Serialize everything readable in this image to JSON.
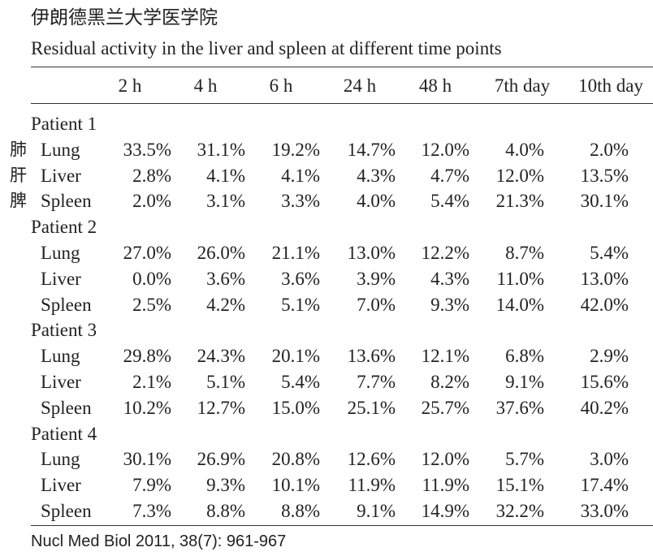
{
  "header": {
    "title": "伊朗德黑兰大学医学院",
    "subtitle": "Residual activity in the liver and spleen at different time points"
  },
  "table": {
    "columns": [
      "2 h",
      "4 h",
      "6 h",
      "24 h",
      "48 h",
      "7th day",
      "10th day"
    ],
    "groups": [
      {
        "label": "Patient 1",
        "rows": [
          {
            "note": "肺",
            "label": "Lung",
            "values": [
              "33.5%",
              "31.1%",
              "19.2%",
              "14.7%",
              "12.0%",
              "4.0%",
              "2.0%"
            ]
          },
          {
            "note": "肝",
            "label": "Liver",
            "values": [
              "2.8%",
              "4.1%",
              "4.1%",
              "4.3%",
              "4.7%",
              "12.0%",
              "13.5%"
            ]
          },
          {
            "note": "脾",
            "label": "Spleen",
            "values": [
              "2.0%",
              "3.1%",
              "3.3%",
              "4.0%",
              "5.4%",
              "21.3%",
              "30.1%"
            ]
          }
        ]
      },
      {
        "label": "Patient 2",
        "rows": [
          {
            "label": "Lung",
            "values": [
              "27.0%",
              "26.0%",
              "21.1%",
              "13.0%",
              "12.2%",
              "8.7%",
              "5.4%"
            ]
          },
          {
            "label": "Liver",
            "values": [
              "0.0%",
              "3.6%",
              "3.6%",
              "3.9%",
              "4.3%",
              "11.0%",
              "13.0%"
            ]
          },
          {
            "label": "Spleen",
            "values": [
              "2.5%",
              "4.2%",
              "5.1%",
              "7.0%",
              "9.3%",
              "14.0%",
              "42.0%"
            ]
          }
        ]
      },
      {
        "label": "Patient 3",
        "rows": [
          {
            "label": "Lung",
            "values": [
              "29.8%",
              "24.3%",
              "20.1%",
              "13.6%",
              "12.1%",
              "6.8%",
              "2.9%"
            ]
          },
          {
            "label": "Liver",
            "values": [
              "2.1%",
              "5.1%",
              "5.4%",
              "7.7%",
              "8.2%",
              "9.1%",
              "15.6%"
            ]
          },
          {
            "label": "Spleen",
            "values": [
              "10.2%",
              "12.7%",
              "15.0%",
              "25.1%",
              "25.7%",
              "37.6%",
              "40.2%"
            ]
          }
        ]
      },
      {
        "label": "Patient 4",
        "rows": [
          {
            "label": "Lung",
            "values": [
              "30.1%",
              "26.9%",
              "20.8%",
              "12.6%",
              "12.0%",
              "5.7%",
              "3.0%"
            ]
          },
          {
            "label": "Liver",
            "values": [
              "7.9%",
              "9.3%",
              "10.1%",
              "11.9%",
              "11.9%",
              "15.1%",
              "17.4%"
            ]
          },
          {
            "label": "Spleen",
            "values": [
              "7.3%",
              "8.8%",
              "8.8%",
              "9.1%",
              "14.9%",
              "32.2%",
              "33.0%"
            ]
          }
        ]
      }
    ]
  },
  "footer": "Nucl Med Biol 2011, 38(7): 961-967"
}
